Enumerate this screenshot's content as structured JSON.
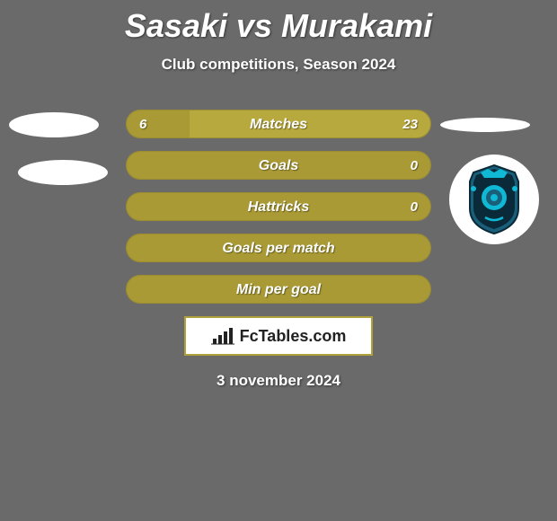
{
  "title": "Sasaki vs Murakami",
  "subtitle": "Club competitions, Season 2024",
  "date": "3 november 2024",
  "branding": "FcTables.com",
  "colors": {
    "bar_left": "#a99a35",
    "bar_right": "#b8a93f",
    "bar_border": "#9c8d2f",
    "crest_primary": "#1a5f7a",
    "crest_accent": "#0fb8d4",
    "crest_dark": "#0a2a3a"
  },
  "stats": [
    {
      "label": "Matches",
      "left_val": "6",
      "right_val": "23",
      "left_pct": 20.7
    },
    {
      "label": "Goals",
      "left_val": "",
      "right_val": "0",
      "left_pct": 100
    },
    {
      "label": "Hattricks",
      "left_val": "",
      "right_val": "0",
      "left_pct": 100
    },
    {
      "label": "Goals per match",
      "left_val": "",
      "right_val": "",
      "left_pct": 100
    },
    {
      "label": "Min per goal",
      "left_val": "",
      "right_val": "",
      "left_pct": 100
    }
  ]
}
